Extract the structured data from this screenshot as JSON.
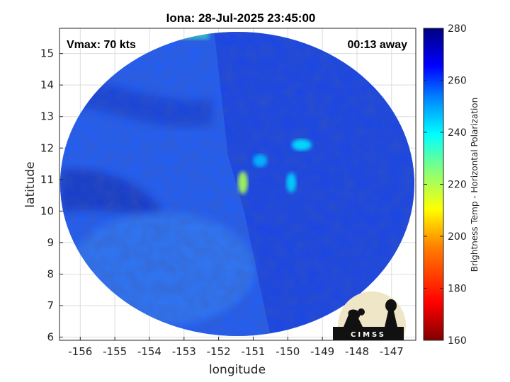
{
  "chart_data": {
    "type": "heatmap",
    "title": "Iona: 28-Jul-2025 23:45:00",
    "xlabel": "longitude",
    "ylabel": "latitude",
    "xlim": [
      -156.6,
      -146.3
    ],
    "ylim": [
      5.9,
      15.8
    ],
    "xticks": [
      -156,
      -155,
      -154,
      -153,
      -152,
      -151,
      -150,
      -149,
      -148,
      -147
    ],
    "yticks": [
      6,
      7,
      8,
      9,
      10,
      11,
      12,
      13,
      14,
      15
    ],
    "grid": true,
    "annotations": {
      "vmax": "Vmax: 70 kts",
      "time_offset": "00:13 away"
    },
    "colorbar": {
      "label": "Brightness Temp - Horizontal Polarization",
      "range": [
        160,
        280
      ],
      "ticks": [
        160,
        180,
        200,
        220,
        240,
        260,
        280
      ],
      "colors": [
        "#800000",
        "#ff0000",
        "#ff8000",
        "#ffff00",
        "#80ff80",
        "#00ffff",
        "#0080ff",
        "#0000ff",
        "#000080"
      ]
    },
    "swath": {
      "center": [
        -151.5,
        10.8
      ],
      "background_tb": 258
    },
    "features": [
      {
        "name": "warm core near center",
        "lon": -151.3,
        "lat": 10.9,
        "tb": 215
      },
      {
        "name": "rain band north-east",
        "lon": -149.6,
        "lat": 12.1,
        "tb": 238
      },
      {
        "name": "rain band east",
        "lon": -149.9,
        "lat": 10.9,
        "tb": 240
      },
      {
        "name": "convective area",
        "lon": -150.8,
        "lat": 11.6,
        "tb": 243
      },
      {
        "name": "edge artifact",
        "lon": -152.7,
        "lat": 15.7,
        "tb": 235
      }
    ]
  },
  "logo": {
    "text": "CIMSS"
  },
  "colors": {
    "background_field": "#1e50e6"
  }
}
